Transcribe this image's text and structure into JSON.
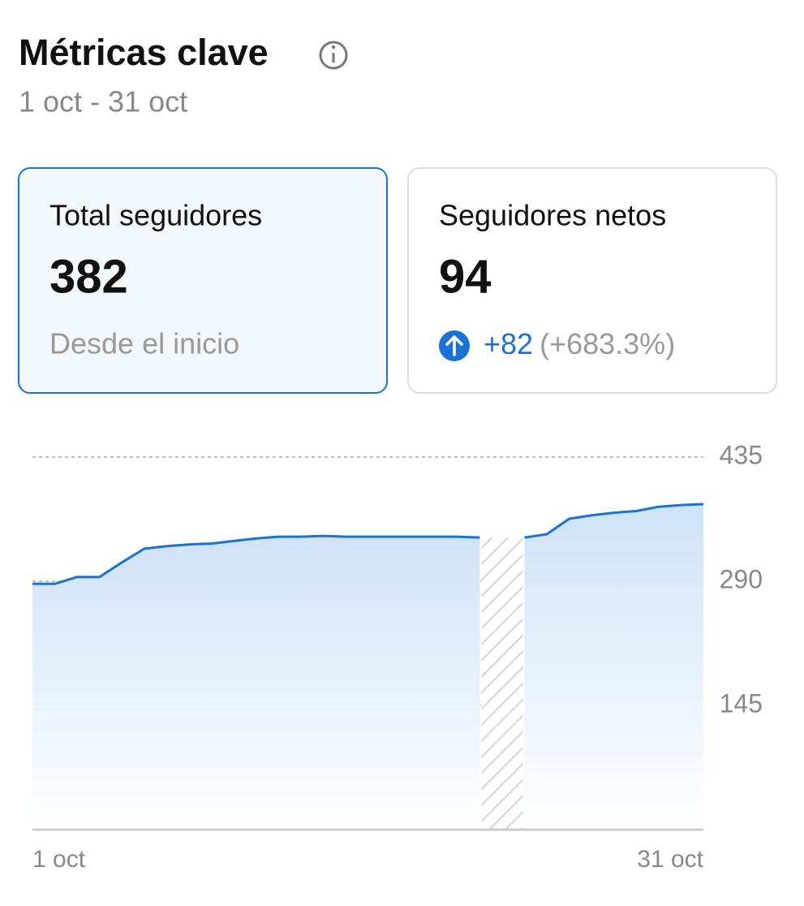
{
  "header": {
    "title": "Métricas clave",
    "subtitle": "1 oct - 31 oct"
  },
  "cards": [
    {
      "label": "Total seguidores",
      "value": 382,
      "note": "Desde el inicio"
    },
    {
      "label": "Seguidores netos",
      "value": 94,
      "change": "+82",
      "change_pct": "(+683.3%)"
    }
  ],
  "chart_data": {
    "type": "area",
    "categories": [
      "1 oct",
      null,
      null,
      null,
      null,
      null,
      null,
      null,
      null,
      null,
      null,
      null,
      null,
      null,
      null,
      null,
      null,
      null,
      null,
      null,
      null,
      null,
      null,
      null,
      null,
      null,
      null,
      null,
      null,
      null,
      "31 oct"
    ],
    "values": [
      287,
      287,
      295,
      295,
      312,
      328,
      331,
      333,
      334,
      337,
      340,
      342,
      342,
      343,
      342,
      342,
      342,
      342,
      342,
      342,
      341,
      null,
      341,
      345,
      363,
      367,
      370,
      372,
      377,
      379,
      380
    ],
    "color": "#1a73d0",
    "ylim": [
      0,
      435
    ],
    "yticks": [
      145,
      290,
      435
    ],
    "grid": true
  }
}
